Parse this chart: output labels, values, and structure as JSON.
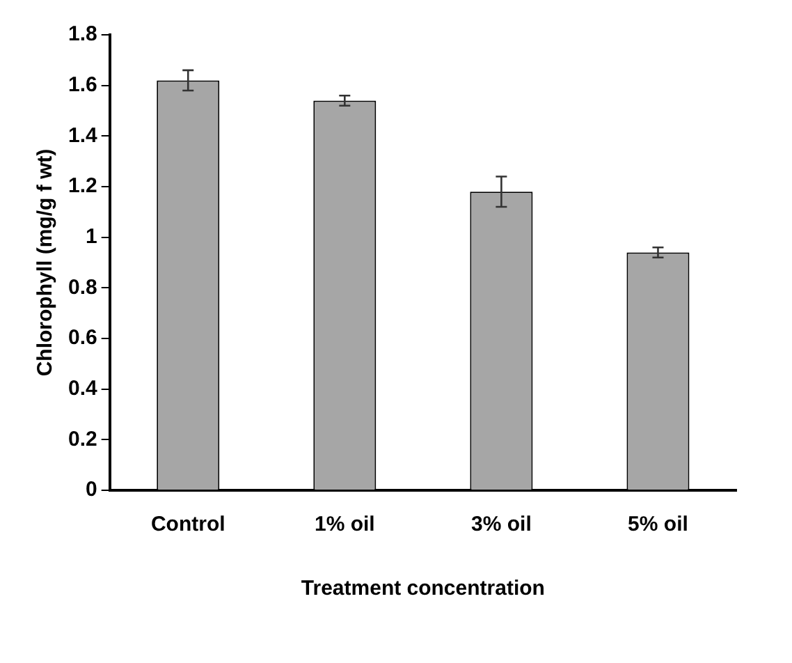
{
  "chart_data": {
    "type": "bar",
    "xlabel": "Treatment concentration",
    "ylabel": "Chlorophyll (mg/g f wt)",
    "categories": [
      "Control",
      "1% oil",
      "3% oil",
      "5% oil"
    ],
    "values": [
      1.62,
      1.54,
      1.18,
      0.94
    ],
    "errors": [
      0.04,
      0.02,
      0.06,
      0.02
    ],
    "color": "#a6a6a6",
    "ylim": [
      0,
      1.8
    ],
    "yticks": [
      0,
      0.2,
      0.4,
      0.6,
      0.8,
      1,
      1.2,
      1.4,
      1.6,
      1.8
    ],
    "grid": false,
    "legend": false
  }
}
